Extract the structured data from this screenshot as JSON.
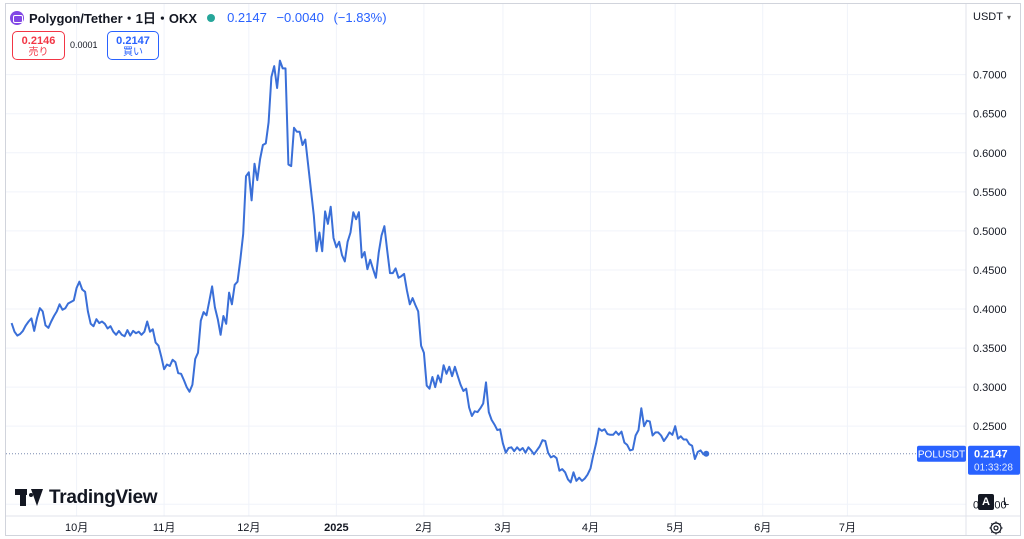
{
  "header": {
    "title": "Polygon/Tether・1日・OKX",
    "last": "0.2147",
    "change": "−0.0040",
    "change_pct": "(−1.83%)"
  },
  "trade": {
    "sell_price": "0.2146",
    "sell_label": "売り",
    "spread": "0.0001",
    "buy_price": "0.2147",
    "buy_label": "買い"
  },
  "currency": "USDT",
  "symbol_label": "POLUSDT",
  "price_label": "0.2147",
  "countdown": "01:33:28",
  "scale_buttons": {
    "auto": "A",
    "log": "L"
  },
  "brand": "TradingView",
  "icons": {
    "logo": "polygon-logo-icon",
    "status": "market-open-dot-icon",
    "currency_dropdown": "chevron-down-icon",
    "brand": "tradingview-logo-icon",
    "settings": "gear-icon"
  },
  "colors": {
    "line": "#3a6fd8",
    "accent": "#2962ff",
    "sell": "#f23645",
    "status": "#26a69a",
    "grid": "#f0f3fa"
  },
  "chart_data": {
    "type": "line",
    "x_tick_labels": [
      "10月",
      "11月",
      "12月",
      "2025",
      "2月",
      "3月",
      "4月",
      "5月",
      "6月",
      "7月"
    ],
    "y_ticks": [
      0.15,
      0.25,
      0.3,
      0.35,
      0.4,
      0.45,
      0.5,
      0.55,
      0.6,
      0.65,
      0.7
    ],
    "y_tick_labels": [
      "0.1500",
      "0.2500",
      "0.3000",
      "0.3500",
      "0.4000",
      "0.4500",
      "0.5000",
      "0.5500",
      "0.6000",
      "0.6500",
      "0.7000"
    ],
    "ylim": [
      0.135,
      0.77
    ],
    "x_range_days": [
      -25,
      315
    ],
    "x_tick_days": [
      0,
      31,
      61,
      92,
      123,
      151,
      182,
      212,
      243,
      273
    ],
    "last_price": 0.2147,
    "grid": true,
    "points": [
      [
        -23,
        0.382
      ],
      [
        -22,
        0.371
      ],
      [
        -21,
        0.366
      ],
      [
        -20,
        0.368
      ],
      [
        -19,
        0.372
      ],
      [
        -18,
        0.379
      ],
      [
        -17,
        0.384
      ],
      [
        -16,
        0.388
      ],
      [
        -15,
        0.372
      ],
      [
        -14,
        0.389
      ],
      [
        -13,
        0.401
      ],
      [
        -12,
        0.397
      ],
      [
        -11,
        0.379
      ],
      [
        -10,
        0.376
      ],
      [
        -9,
        0.384
      ],
      [
        -8,
        0.391
      ],
      [
        -7,
        0.397
      ],
      [
        -6,
        0.406
      ],
      [
        -5,
        0.399
      ],
      [
        -4,
        0.401
      ],
      [
        -3,
        0.407
      ],
      [
        -2,
        0.409
      ],
      [
        -1,
        0.411
      ],
      [
        0,
        0.427
      ],
      [
        1,
        0.435
      ],
      [
        2,
        0.425
      ],
      [
        3,
        0.422
      ],
      [
        4,
        0.397
      ],
      [
        5,
        0.381
      ],
      [
        6,
        0.378
      ],
      [
        7,
        0.387
      ],
      [
        8,
        0.382
      ],
      [
        9,
        0.384
      ],
      [
        10,
        0.381
      ],
      [
        11,
        0.375
      ],
      [
        12,
        0.378
      ],
      [
        13,
        0.371
      ],
      [
        14,
        0.367
      ],
      [
        15,
        0.372
      ],
      [
        16,
        0.367
      ],
      [
        17,
        0.365
      ],
      [
        18,
        0.373
      ],
      [
        19,
        0.366
      ],
      [
        20,
        0.372
      ],
      [
        21,
        0.369
      ],
      [
        22,
        0.371
      ],
      [
        23,
        0.367
      ],
      [
        24,
        0.371
      ],
      [
        25,
        0.384
      ],
      [
        26,
        0.371
      ],
      [
        27,
        0.374
      ],
      [
        28,
        0.357
      ],
      [
        29,
        0.353
      ],
      [
        30,
        0.339
      ],
      [
        31,
        0.323
      ],
      [
        32,
        0.329
      ],
      [
        33,
        0.327
      ],
      [
        34,
        0.335
      ],
      [
        35,
        0.332
      ],
      [
        36,
        0.318
      ],
      [
        37,
        0.317
      ],
      [
        38,
        0.309
      ],
      [
        39,
        0.3
      ],
      [
        40,
        0.294
      ],
      [
        41,
        0.303
      ],
      [
        42,
        0.336
      ],
      [
        43,
        0.344
      ],
      [
        44,
        0.385
      ],
      [
        45,
        0.396
      ],
      [
        46,
        0.392
      ],
      [
        47,
        0.41
      ],
      [
        48,
        0.429
      ],
      [
        49,
        0.402
      ],
      [
        50,
        0.387
      ],
      [
        51,
        0.367
      ],
      [
        52,
        0.391
      ],
      [
        53,
        0.381
      ],
      [
        54,
        0.421
      ],
      [
        55,
        0.406
      ],
      [
        56,
        0.431
      ],
      [
        57,
        0.435
      ],
      [
        58,
        0.464
      ],
      [
        59,
        0.496
      ],
      [
        60,
        0.57
      ],
      [
        61,
        0.575
      ],
      [
        62,
        0.539
      ],
      [
        63,
        0.586
      ],
      [
        64,
        0.565
      ],
      [
        65,
        0.592
      ],
      [
        66,
        0.61
      ],
      [
        67,
        0.612
      ],
      [
        68,
        0.639
      ],
      [
        69,
        0.697
      ],
      [
        70,
        0.711
      ],
      [
        71,
        0.683
      ],
      [
        72,
        0.718
      ],
      [
        73,
        0.708
      ],
      [
        74,
        0.708
      ],
      [
        75,
        0.585
      ],
      [
        76,
        0.583
      ],
      [
        77,
        0.632
      ],
      [
        78,
        0.627
      ],
      [
        79,
        0.627
      ],
      [
        80,
        0.61
      ],
      [
        81,
        0.617
      ],
      [
        82,
        0.585
      ],
      [
        83,
        0.553
      ],
      [
        84,
        0.52
      ],
      [
        85,
        0.474
      ],
      [
        86,
        0.498
      ],
      [
        87,
        0.474
      ],
      [
        88,
        0.525
      ],
      [
        89,
        0.509
      ],
      [
        90,
        0.531
      ],
      [
        91,
        0.491
      ],
      [
        92,
        0.479
      ],
      [
        93,
        0.486
      ],
      [
        94,
        0.469
      ],
      [
        95,
        0.461
      ],
      [
        96,
        0.486
      ],
      [
        97,
        0.498
      ],
      [
        98,
        0.524
      ],
      [
        99,
        0.515
      ],
      [
        100,
        0.524
      ],
      [
        101,
        0.466
      ],
      [
        102,
        0.473
      ],
      [
        103,
        0.451
      ],
      [
        104,
        0.463
      ],
      [
        105,
        0.451
      ],
      [
        106,
        0.44
      ],
      [
        107,
        0.472
      ],
      [
        108,
        0.494
      ],
      [
        109,
        0.506
      ],
      [
        110,
        0.475
      ],
      [
        111,
        0.446
      ],
      [
        112,
        0.446
      ],
      [
        113,
        0.452
      ],
      [
        114,
        0.44
      ],
      [
        115,
        0.442
      ],
      [
        116,
        0.445
      ],
      [
        117,
        0.424
      ],
      [
        118,
        0.406
      ],
      [
        119,
        0.414
      ],
      [
        120,
        0.405
      ],
      [
        121,
        0.397
      ],
      [
        122,
        0.353
      ],
      [
        123,
        0.344
      ],
      [
        124,
        0.302
      ],
      [
        125,
        0.298
      ],
      [
        126,
        0.313
      ],
      [
        127,
        0.3
      ],
      [
        128,
        0.315
      ],
      [
        129,
        0.306
      ],
      [
        130,
        0.328
      ],
      [
        131,
        0.317
      ],
      [
        132,
        0.326
      ],
      [
        133,
        0.314
      ],
      [
        134,
        0.326
      ],
      [
        135,
        0.314
      ],
      [
        136,
        0.303
      ],
      [
        137,
        0.295
      ],
      [
        138,
        0.298
      ],
      [
        139,
        0.274
      ],
      [
        140,
        0.263
      ],
      [
        141,
        0.269
      ],
      [
        142,
        0.268
      ],
      [
        143,
        0.273
      ],
      [
        144,
        0.279
      ],
      [
        145,
        0.306
      ],
      [
        146,
        0.268
      ],
      [
        147,
        0.258
      ],
      [
        148,
        0.252
      ],
      [
        149,
        0.245
      ],
      [
        150,
        0.246
      ],
      [
        151,
        0.228
      ],
      [
        152,
        0.216
      ],
      [
        153,
        0.222
      ],
      [
        154,
        0.223
      ],
      [
        155,
        0.218
      ],
      [
        156,
        0.223
      ],
      [
        157,
        0.219
      ],
      [
        158,
        0.222
      ],
      [
        159,
        0.216
      ],
      [
        160,
        0.223
      ],
      [
        161,
        0.219
      ],
      [
        162,
        0.214
      ],
      [
        163,
        0.219
      ],
      [
        164,
        0.224
      ],
      [
        165,
        0.232
      ],
      [
        166,
        0.231
      ],
      [
        167,
        0.216
      ],
      [
        168,
        0.21
      ],
      [
        169,
        0.212
      ],
      [
        170,
        0.209
      ],
      [
        171,
        0.193
      ],
      [
        172,
        0.195
      ],
      [
        173,
        0.191
      ],
      [
        174,
        0.182
      ],
      [
        175,
        0.178
      ],
      [
        176,
        0.191
      ],
      [
        177,
        0.18
      ],
      [
        178,
        0.184
      ],
      [
        179,
        0.18
      ],
      [
        180,
        0.183
      ],
      [
        181,
        0.188
      ],
      [
        182,
        0.196
      ],
      [
        183,
        0.213
      ],
      [
        184,
        0.228
      ],
      [
        185,
        0.247
      ],
      [
        186,
        0.244
      ],
      [
        187,
        0.246
      ],
      [
        188,
        0.24
      ],
      [
        189,
        0.239
      ],
      [
        190,
        0.239
      ],
      [
        191,
        0.243
      ],
      [
        192,
        0.239
      ],
      [
        193,
        0.243
      ],
      [
        194,
        0.229
      ],
      [
        195,
        0.226
      ],
      [
        196,
        0.219
      ],
      [
        197,
        0.22
      ],
      [
        198,
        0.238
      ],
      [
        199,
        0.245
      ],
      [
        200,
        0.273
      ],
      [
        201,
        0.25
      ],
      [
        202,
        0.257
      ],
      [
        203,
        0.256
      ],
      [
        204,
        0.238
      ],
      [
        205,
        0.242
      ],
      [
        206,
        0.242
      ],
      [
        207,
        0.238
      ],
      [
        208,
        0.231
      ],
      [
        209,
        0.236
      ],
      [
        210,
        0.242
      ],
      [
        211,
        0.239
      ],
      [
        212,
        0.25
      ],
      [
        213,
        0.234
      ],
      [
        214,
        0.237
      ],
      [
        215,
        0.233
      ],
      [
        216,
        0.233
      ],
      [
        217,
        0.227
      ],
      [
        218,
        0.225
      ],
      [
        219,
        0.208
      ],
      [
        220,
        0.217
      ],
      [
        221,
        0.219
      ],
      [
        222,
        0.214
      ],
      [
        223,
        0.2147
      ]
    ]
  }
}
